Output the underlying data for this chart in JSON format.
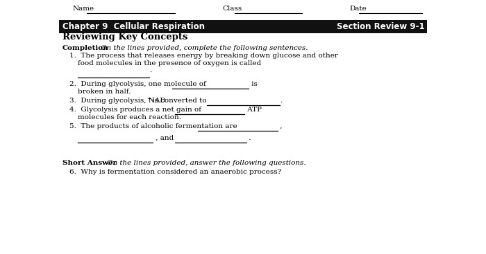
{
  "bg_color": "#ffffff",
  "header_bg": "#111111",
  "header_text_left": "Chapter 9  Cellular Respiration",
  "header_text_right": "Section Review 9-1",
  "header_text_color": "#ffffff",
  "name_label": "Name",
  "class_label": "Class",
  "date_label": "Date",
  "section_title": "Reviewing Key Concepts",
  "completion_label": "Completion",
  "completion_italic": "On the lines provided, complete the following sentences.",
  "short_answer_label": "Short Answer",
  "short_answer_italic": "On the lines provided, answer the following questions.",
  "short_answer_q": "6.  Why is fermentation considered an anaerobic process?",
  "fontsize_body": 7.5,
  "fontsize_header": 8.5,
  "fontsize_title": 9.5
}
